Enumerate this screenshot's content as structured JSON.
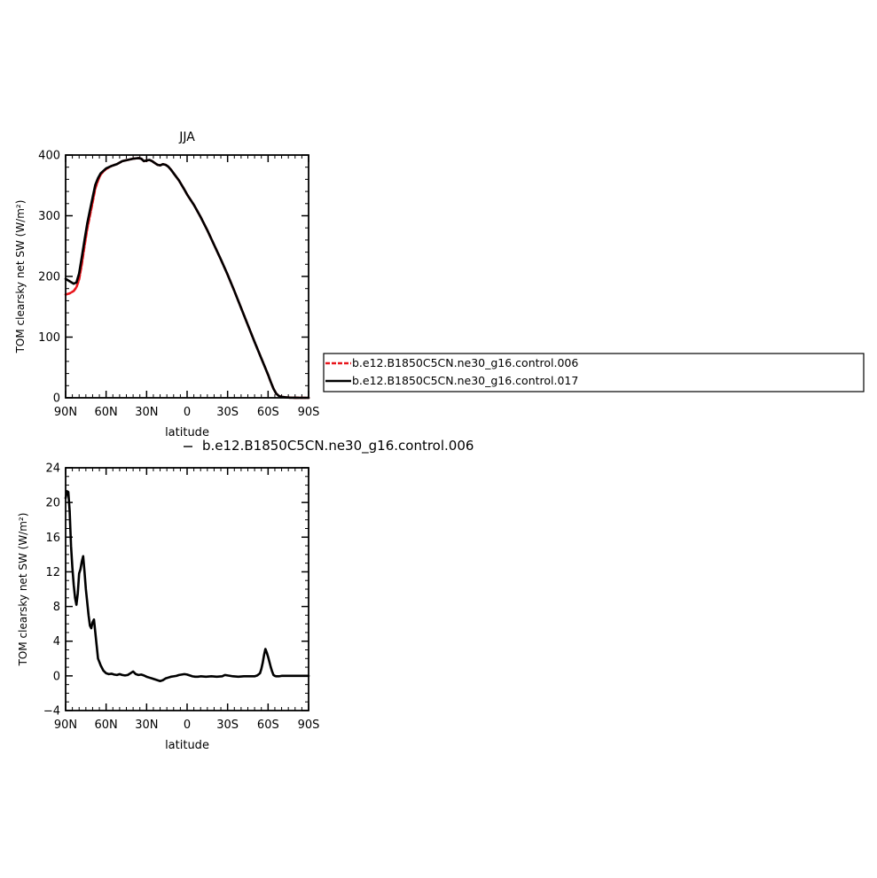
{
  "colors": {
    "control006": "#e8151b",
    "control017": "#000000",
    "difference": "#000000"
  },
  "chart_data": [
    {
      "type": "line",
      "title": "JJA",
      "xlabel": "latitude",
      "ylabel": "TOM clearsky net SW (W/m²)",
      "xlim": [
        90,
        -90
      ],
      "ylim": [
        0,
        400
      ],
      "xticks": [
        90,
        60,
        30,
        0,
        -30,
        -60,
        -90
      ],
      "xticklabels": [
        "90N",
        "60N",
        "30N",
        "0",
        "30S",
        "60S",
        "90S"
      ],
      "yticks": [
        0,
        100,
        200,
        300,
        400
      ],
      "yticklabels": [
        "0",
        "100",
        "200",
        "300",
        "400"
      ],
      "legend": "right",
      "series": [
        {
          "name": "b.e12.B1850C5CN.ne30_g16.control.006",
          "color": "#e8151b",
          "dashed": true,
          "x": [
            90,
            87,
            84,
            82,
            80,
            78,
            76,
            74,
            72,
            70,
            68,
            66,
            64,
            62,
            60,
            56,
            52,
            48,
            44,
            40,
            36,
            34,
            32,
            30,
            28,
            26,
            24,
            22,
            20,
            18,
            16,
            14,
            12,
            10,
            6,
            2,
            0,
            -5,
            -10,
            -15,
            -20,
            -25,
            -30,
            -35,
            -40,
            -45,
            -50,
            -55,
            -60,
            -62,
            -64,
            -66,
            -68,
            -70,
            -73,
            -76,
            -80,
            -84,
            -88,
            -90
          ],
          "y": [
            170,
            172,
            176,
            182,
            195,
            220,
            250,
            278,
            300,
            322,
            345,
            358,
            368,
            373,
            377,
            382,
            385,
            390,
            392,
            394,
            395,
            394,
            390,
            391,
            392,
            390,
            387,
            384,
            383,
            385,
            384,
            381,
            376,
            370,
            358,
            343,
            335,
            318,
            298,
            276,
            252,
            228,
            203,
            176,
            148,
            120,
            92,
            65,
            38,
            26,
            15,
            7,
            3,
            1.5,
            0.8,
            0.3,
            0.1,
            0,
            0,
            0
          ]
        },
        {
          "name": "b.e12.B1850C5CN.ne30_g16.control.017",
          "color": "#000000",
          "dashed": false,
          "x": [
            90,
            87,
            84,
            82,
            80,
            78,
            76,
            74,
            72,
            70,
            68,
            66,
            64,
            62,
            60,
            56,
            52,
            48,
            44,
            40,
            36,
            34,
            32,
            30,
            28,
            26,
            24,
            22,
            20,
            18,
            16,
            14,
            12,
            10,
            6,
            2,
            0,
            -5,
            -10,
            -15,
            -20,
            -25,
            -30,
            -35,
            -40,
            -45,
            -50,
            -55,
            -60,
            -62,
            -64,
            -66,
            -68,
            -70,
            -73,
            -76,
            -80,
            -84,
            -88,
            -90
          ],
          "y": [
            196,
            192,
            188,
            190,
            205,
            232,
            260,
            287,
            309,
            330,
            351,
            362,
            370,
            374,
            378,
            382,
            385,
            390,
            392,
            394,
            395,
            394,
            390,
            391,
            392,
            390,
            387,
            384,
            383,
            385,
            384,
            381,
            376,
            370,
            358,
            343,
            335,
            318,
            298,
            276,
            252,
            228,
            203,
            176,
            148,
            120,
            92,
            65,
            38,
            26,
            15,
            7,
            3,
            1.5,
            0.8,
            0.3,
            0.1,
            0,
            0,
            0
          ]
        }
      ]
    },
    {
      "type": "line",
      "title": "b.e12.B1850C5CN.ne30_g16.control.006",
      "xlabel": "latitude",
      "ylabel": "TOM clearsky net SW (W/m²)",
      "xlim": [
        90,
        -90
      ],
      "ylim": [
        -4,
        24
      ],
      "xticks": [
        90,
        60,
        30,
        0,
        -30,
        -60,
        -90
      ],
      "xticklabels": [
        "90N",
        "60N",
        "30N",
        "0",
        "30S",
        "60S",
        "90S"
      ],
      "yticks": [
        -4,
        0,
        4,
        8,
        12,
        16,
        20,
        24
      ],
      "yticklabels": [
        "−4",
        "0",
        "4",
        "8",
        "12",
        "16",
        "20",
        "24"
      ],
      "series": [
        {
          "name": "",
          "color": "#000000",
          "dashed": false,
          "x": [
            90,
            89,
            88,
            87,
            86,
            85,
            84,
            83,
            82,
            81,
            80,
            79,
            78,
            77,
            76,
            75,
            74,
            73,
            72,
            71,
            70,
            69,
            68,
            67,
            66,
            65,
            64,
            62,
            60,
            58,
            56,
            54,
            52,
            50,
            48,
            46,
            44,
            42,
            40,
            38,
            36,
            34,
            32,
            30,
            28,
            26,
            24,
            22,
            20,
            18,
            16,
            14,
            12,
            10,
            8,
            6,
            4,
            2,
            0,
            -2,
            -4,
            -6,
            -8,
            -10,
            -14,
            -18,
            -22,
            -26,
            -28,
            -30,
            -34,
            -38,
            -42,
            -46,
            -50,
            -52,
            -54,
            -55,
            -56,
            -57,
            -58,
            -59,
            -60,
            -61,
            -62,
            -63,
            -64,
            -65,
            -66,
            -68,
            -70,
            -75,
            -80,
            -85,
            -90
          ],
          "y": [
            20.5,
            21.3,
            21.2,
            19,
            15,
            12.5,
            10.5,
            9,
            8.2,
            9.5,
            11.8,
            12.3,
            13.2,
            13.8,
            12,
            10,
            8.5,
            7,
            5.8,
            5.5,
            6.2,
            6.5,
            5,
            3.5,
            2,
            1.6,
            1.2,
            0.6,
            0.3,
            0.2,
            0.25,
            0.15,
            0.1,
            0.2,
            0.1,
            0.05,
            0.1,
            0.3,
            0.5,
            0.2,
            0.1,
            0.15,
            0.05,
            -0.1,
            -0.2,
            -0.3,
            -0.4,
            -0.5,
            -0.6,
            -0.5,
            -0.3,
            -0.2,
            -0.1,
            -0.05,
            0,
            0.1,
            0.15,
            0.2,
            0.15,
            0.05,
            -0.05,
            -0.1,
            -0.1,
            -0.05,
            -0.1,
            -0.05,
            -0.1,
            -0.05,
            0.1,
            0.05,
            -0.05,
            -0.1,
            -0.05,
            -0.05,
            -0.05,
            0.05,
            0.3,
            0.8,
            1.5,
            2.4,
            3.1,
            2.7,
            2.2,
            1.6,
            1,
            0.5,
            0.1,
            0,
            -0.05,
            -0.05,
            0,
            0,
            0,
            0,
            0
          ]
        }
      ]
    }
  ]
}
